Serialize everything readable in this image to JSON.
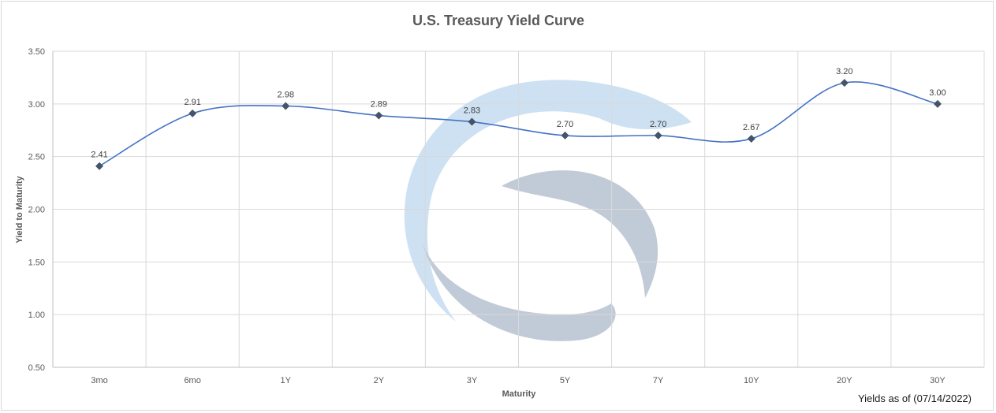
{
  "chart_data": {
    "type": "line",
    "title": "U.S. Treasury Yield Curve",
    "xlabel": "Maturity",
    "ylabel": "Yield to Maturity",
    "categories": [
      "3mo",
      "6mo",
      "1Y",
      "2Y",
      "3Y",
      "5Y",
      "7Y",
      "10Y",
      "20Y",
      "30Y"
    ],
    "values": [
      2.41,
      2.91,
      2.98,
      2.89,
      2.83,
      2.7,
      2.7,
      2.67,
      3.2,
      3.0
    ],
    "data_labels": [
      "2.41",
      "2.91",
      "2.98",
      "2.89",
      "2.83",
      "2.70",
      "2.70",
      "2.67",
      "3.20",
      "3.00"
    ],
    "ylim": [
      0.5,
      3.5
    ],
    "yticks": [
      "0.50",
      "1.00",
      "1.50",
      "2.00",
      "2.50",
      "3.00",
      "3.50"
    ],
    "ytick_values": [
      0.5,
      1.0,
      1.5,
      2.0,
      2.5,
      3.0,
      3.5
    ],
    "grid": true,
    "smooth": true,
    "line_color": "#4472c4",
    "marker_color": "#44546a",
    "footnote": "Yields as of (07/14/2022)"
  },
  "watermark": {
    "icon": "swirl-logo-watermark",
    "colors": [
      "#bdd7ee",
      "#adb9ca"
    ]
  }
}
